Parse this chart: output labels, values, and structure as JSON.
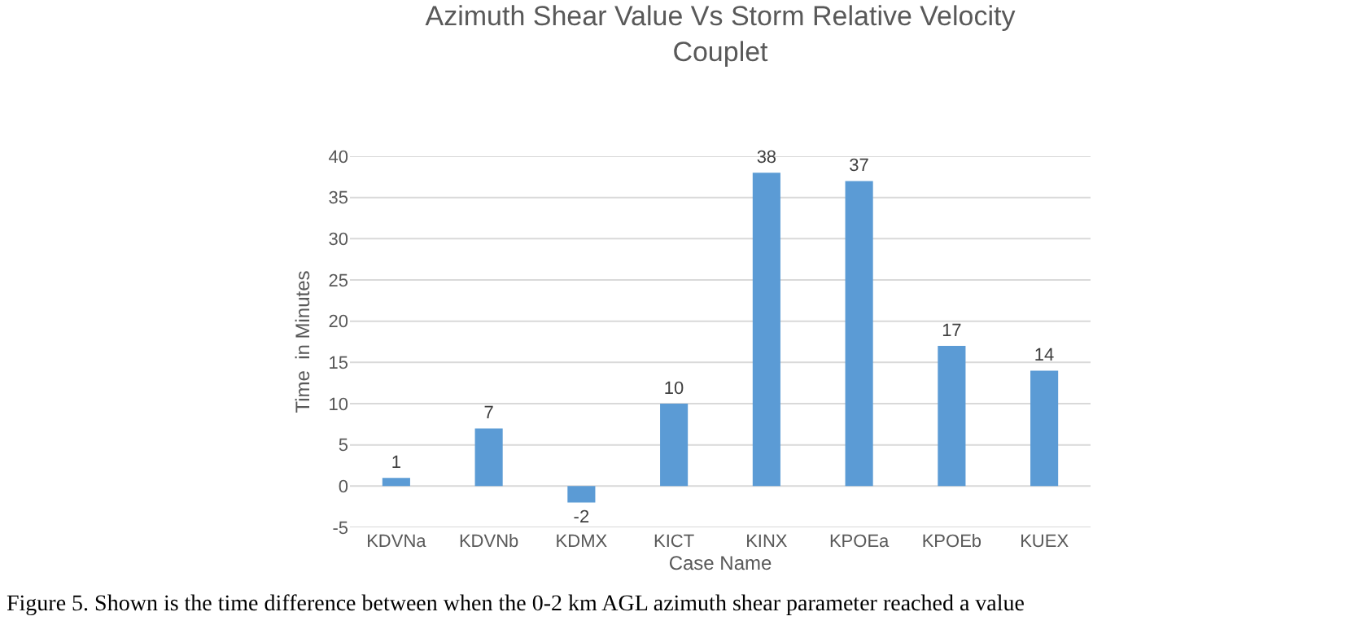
{
  "chart_data": {
    "type": "bar",
    "title": "Azimuth Shear Value Vs Storm Relative Velocity Couplet",
    "xlabel": "Case Name",
    "ylabel": "Time  in Minutes",
    "categories": [
      "KDVNa",
      "KDVNb",
      "KDMX",
      "KICT",
      "KINX",
      "KPOEa",
      "KPOEb",
      "KUEX"
    ],
    "values": [
      1,
      7,
      -2,
      10,
      38,
      37,
      17,
      14
    ],
    "color": "#5b9bd5",
    "data_labels": true,
    "ylim": [
      -5,
      40
    ],
    "yticks": [
      -5,
      0,
      5,
      10,
      15,
      20,
      25,
      30,
      35,
      40
    ],
    "grid": "y",
    "annotations": [
      "Figure 5. Shown is the time difference between when the 0-2 km AGL azimuth shear parameter reached a value"
    ]
  }
}
